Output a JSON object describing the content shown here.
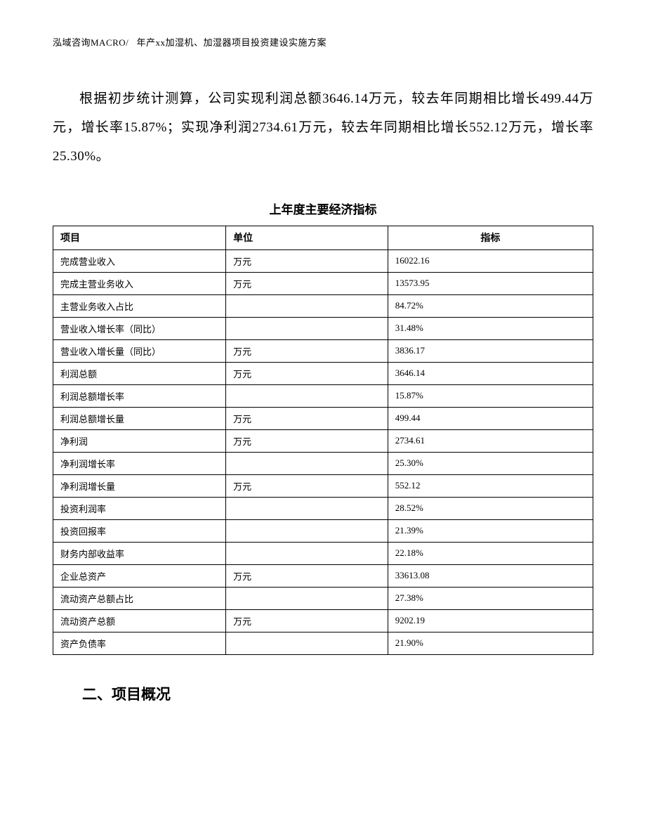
{
  "header": {
    "company": "泓域咨询MACRO/",
    "title": "年产xx加湿机、加湿器项目投资建设实施方案"
  },
  "paragraph": "根据初步统计测算，公司实现利润总额3646.14万元，较去年同期相比增长499.44万元，增长率15.87%；实现净利润2734.61万元，较去年同期相比增长552.12万元，增长率25.30%。",
  "table": {
    "title": "上年度主要经济指标",
    "columns": [
      "项目",
      "单位",
      "指标"
    ],
    "rows": [
      {
        "item": "完成营业收入",
        "unit": "万元",
        "value": "16022.16"
      },
      {
        "item": "完成主营业务收入",
        "unit": "万元",
        "value": "13573.95"
      },
      {
        "item": "主营业务收入占比",
        "unit": "",
        "value": "84.72%"
      },
      {
        "item": "营业收入增长率（同比）",
        "unit": "",
        "value": "31.48%"
      },
      {
        "item": "营业收入增长量（同比）",
        "unit": "万元",
        "value": "3836.17"
      },
      {
        "item": "利润总额",
        "unit": "万元",
        "value": "3646.14"
      },
      {
        "item": "利润总额增长率",
        "unit": "",
        "value": "15.87%"
      },
      {
        "item": "利润总额增长量",
        "unit": "万元",
        "value": "499.44"
      },
      {
        "item": "净利润",
        "unit": "万元",
        "value": "2734.61"
      },
      {
        "item": "净利润增长率",
        "unit": "",
        "value": "25.30%"
      },
      {
        "item": "净利润增长量",
        "unit": "万元",
        "value": "552.12"
      },
      {
        "item": "投资利润率",
        "unit": "",
        "value": "28.52%"
      },
      {
        "item": "投资回报率",
        "unit": "",
        "value": "21.39%"
      },
      {
        "item": "财务内部收益率",
        "unit": "",
        "value": "22.18%"
      },
      {
        "item": "企业总资产",
        "unit": "万元",
        "value": "33613.08"
      },
      {
        "item": "流动资产总额占比",
        "unit": "",
        "value": "27.38%"
      },
      {
        "item": "流动资产总额",
        "unit": "万元",
        "value": "9202.19"
      },
      {
        "item": "资产负债率",
        "unit": "",
        "value": "21.90%"
      }
    ]
  },
  "section_heading": "二、项目概况"
}
